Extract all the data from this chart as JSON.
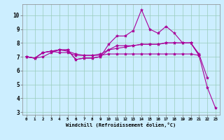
{
  "xlabel": "Windchill (Refroidissement éolien,°C)",
  "ylabel": "",
  "bg_color": "#cceeff",
  "line_color": "#aa0099",
  "xlim": [
    -0.5,
    23.5
  ],
  "ylim": [
    2.8,
    10.8
  ],
  "yticks": [
    3,
    4,
    5,
    6,
    7,
    8,
    9,
    10
  ],
  "xticks": [
    0,
    1,
    2,
    3,
    4,
    5,
    6,
    7,
    8,
    9,
    10,
    11,
    12,
    13,
    14,
    15,
    16,
    17,
    18,
    19,
    20,
    21,
    22,
    23
  ],
  "line1_x": [
    0,
    1,
    2,
    3,
    4,
    5,
    6,
    7,
    8,
    9,
    10,
    11,
    12,
    13,
    14,
    15,
    16,
    17,
    18,
    19,
    20,
    21,
    22,
    23
  ],
  "line1_y": [
    7.0,
    6.9,
    7.0,
    7.3,
    7.5,
    7.5,
    6.8,
    6.9,
    6.9,
    7.0,
    7.9,
    8.5,
    8.5,
    8.9,
    10.4,
    9.0,
    8.7,
    9.2,
    8.7,
    8.0,
    8.0,
    7.1,
    4.8,
    3.3
  ],
  "line2_x": [
    0,
    1,
    2,
    3,
    4,
    5,
    6,
    7,
    8,
    9,
    10,
    11,
    12,
    13,
    14,
    15,
    16,
    17,
    18,
    19,
    20,
    21,
    22,
    23
  ],
  "line2_y": [
    7.0,
    6.9,
    7.3,
    7.4,
    7.5,
    7.4,
    7.2,
    7.1,
    7.1,
    7.2,
    7.5,
    7.6,
    7.7,
    7.8,
    7.9,
    7.9,
    7.9,
    8.0,
    8.0,
    8.0,
    8.0,
    7.2,
    5.5,
    null
  ],
  "line3_x": [
    0,
    1,
    2,
    3,
    4,
    5,
    6,
    7,
    8,
    9,
    10,
    11,
    12,
    13,
    14,
    15,
    16,
    17,
    18,
    19,
    20,
    21,
    22,
    23
  ],
  "line3_y": [
    7.0,
    6.9,
    7.3,
    7.4,
    7.3,
    7.3,
    7.1,
    7.1,
    7.1,
    7.1,
    7.2,
    7.2,
    7.2,
    7.2,
    7.2,
    7.2,
    7.2,
    7.2,
    7.2,
    7.2,
    7.2,
    7.1,
    null,
    null
  ],
  "line4_x": [
    0,
    1,
    2,
    3,
    4,
    5,
    6,
    7,
    8,
    9,
    10,
    11,
    12,
    13,
    14,
    15,
    16,
    17,
    18,
    19,
    20,
    21,
    22,
    23
  ],
  "line4_y": [
    7.0,
    6.9,
    7.3,
    7.4,
    7.5,
    7.5,
    6.8,
    6.9,
    6.9,
    7.0,
    7.5,
    7.8,
    7.8,
    7.8,
    7.9,
    7.9,
    7.9,
    8.0,
    8.0,
    8.0,
    8.0,
    7.1,
    null,
    null
  ]
}
